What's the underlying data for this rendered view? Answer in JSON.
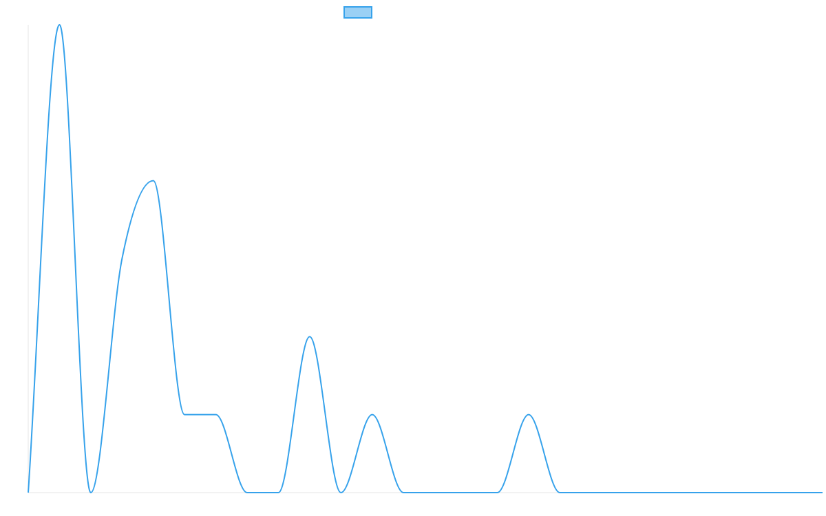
{
  "chart_data": {
    "type": "line",
    "title": "",
    "xlabel": "",
    "ylabel": "",
    "x": [
      0,
      1,
      2,
      3,
      4,
      5,
      6,
      7,
      8,
      9,
      10,
      11,
      12,
      13,
      14,
      15,
      16,
      17,
      18,
      19,
      20,
      21,
      22,
      23,
      24,
      25,
      26
    ],
    "series": [
      {
        "name": "",
        "color": "#36a2eb",
        "fill": "#9ad0f5",
        "values": [
          0,
          6,
          0,
          3,
          4,
          1,
          1,
          0,
          0,
          2,
          0,
          1,
          0,
          0,
          0,
          0,
          1,
          0,
          0,
          0,
          0,
          0,
          0,
          0,
          0,
          0,
          0
        ]
      }
    ],
    "ylim": [
      0,
      6
    ],
    "xlim": [
      0,
      25.4
    ],
    "grid": false,
    "legend": "top-center",
    "curve": "smooth-monotone"
  }
}
